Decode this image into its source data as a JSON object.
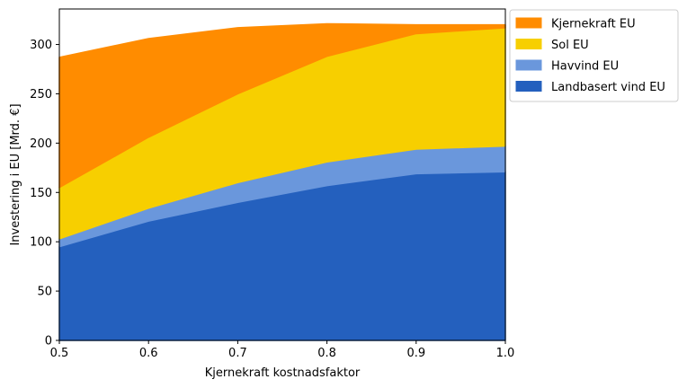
{
  "chart_data": {
    "type": "area",
    "stacked": true,
    "xlabel": "Kjernekraft kostnadsfaktor",
    "ylabel": "Investering i EU [Mrd. €]",
    "x": [
      0.5,
      0.6,
      0.7,
      0.8,
      0.9,
      1.0
    ],
    "xlim": [
      0.5,
      1.0
    ],
    "ylim": [
      0,
      336
    ],
    "xticks": [
      0.5,
      0.6,
      0.7,
      0.8,
      0.9,
      1.0
    ],
    "xtick_labels": [
      "0.5",
      "0.6",
      "0.7",
      "0.8",
      "0.9",
      "1.0"
    ],
    "yticks": [
      0,
      50,
      100,
      150,
      200,
      250,
      300
    ],
    "ytick_labels": [
      "0",
      "50",
      "100",
      "150",
      "200",
      "250",
      "300"
    ],
    "grid": false,
    "legend_position": "outside-top-right",
    "series": [
      {
        "name": "Landbasert vind EU",
        "color": "#2460BE",
        "values": [
          95,
          121,
          140,
          157,
          169,
          171
        ]
      },
      {
        "name": "Havvind EU",
        "color": "#6A97DC",
        "values": [
          8,
          13,
          20,
          24,
          25,
          26
        ]
      },
      {
        "name": "Sol EU",
        "color": "#F7CF00",
        "values": [
          52,
          72,
          90,
          107,
          117,
          120
        ]
      },
      {
        "name": "Kjernekraft EU",
        "color": "#FF8C00",
        "values": [
          132,
          100,
          67,
          33,
          9,
          3
        ]
      }
    ],
    "legend_order": [
      "Kjernekraft EU",
      "Sol EU",
      "Havvind EU",
      "Landbasert vind EU"
    ]
  }
}
